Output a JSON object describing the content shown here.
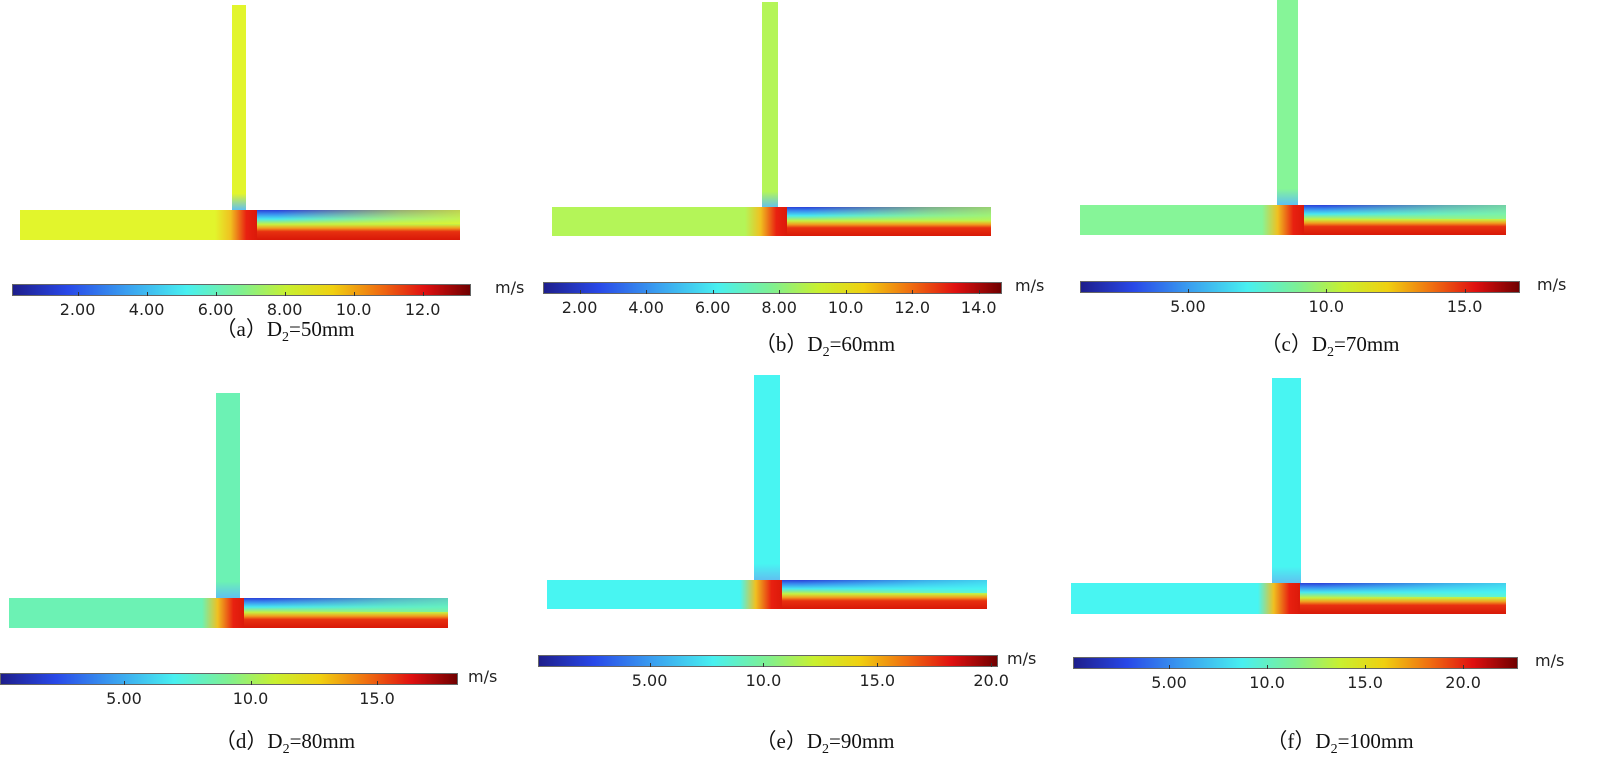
{
  "unit": "m/s",
  "panels": [
    {
      "id": "a",
      "label": "（a）",
      "var": "D",
      "sub": "2",
      "value": "=50mm",
      "field_color": "#e2f52c",
      "colorbar": {
        "min": 0.1,
        "max": 13.4,
        "ticks": [
          "2.00",
          "4.00",
          "6.00",
          "8.00",
          "10.0",
          "12.0"
        ]
      }
    },
    {
      "id": "b",
      "label": "（b）",
      "var": "D",
      "sub": "2",
      "value": "=60mm",
      "field_color": "#b4f558",
      "colorbar": {
        "min": 0.9,
        "max": 14.7,
        "ticks": [
          "2.00",
          "4.00",
          "6.00",
          "8.00",
          "10.0",
          "12.0",
          "14.0"
        ]
      }
    },
    {
      "id": "c",
      "label": "（c）",
      "var": "D",
      "sub": "2",
      "value": "=70mm",
      "field_color": "#86f598",
      "colorbar": {
        "min": 1.1,
        "max": 17.0,
        "ticks": [
          "5.00",
          "10.0",
          "15.0"
        ]
      }
    },
    {
      "id": "d",
      "label": "（d）",
      "var": "D",
      "sub": "2",
      "value": "=80mm",
      "field_color": "#6cf2b4",
      "colorbar": {
        "min": 0.1,
        "max": 18.2,
        "ticks": [
          "5.00",
          "10.0",
          "15.0"
        ]
      }
    },
    {
      "id": "e",
      "label": "（e）",
      "var": "D",
      "sub": "2",
      "value": "=90mm",
      "field_color": "#48f5f2",
      "colorbar": {
        "min": 0.1,
        "max": 20.3,
        "ticks": [
          "5.00",
          "10.0",
          "15.0",
          "20.0"
        ]
      }
    },
    {
      "id": "f",
      "label": "（f）",
      "var": "D",
      "sub": "2",
      "value": "=100mm",
      "field_color": "#48f5f2",
      "colorbar": {
        "min": 0.1,
        "max": 22.8,
        "ticks": [
          "5.00",
          "10.0",
          "15.0",
          "20.0"
        ]
      }
    }
  ]
}
